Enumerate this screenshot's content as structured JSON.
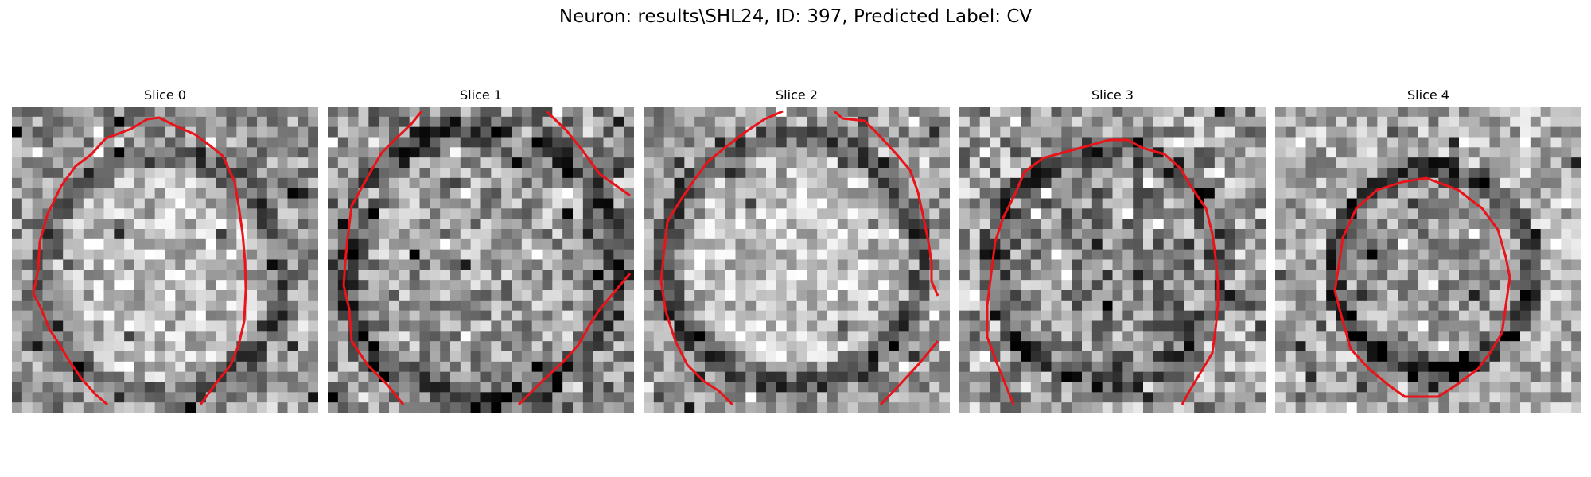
{
  "figure": {
    "title": "Neuron: results\\SHL24, ID: 397, Predicted Label: CV"
  },
  "colors": {
    "contour": "#e8141a",
    "background": "#ffffff"
  },
  "panels": [
    {
      "title": "Slice 0"
    },
    {
      "title": "Slice 1"
    },
    {
      "title": "Slice 2"
    },
    {
      "title": "Slice 3"
    },
    {
      "title": "Slice 4"
    }
  ]
}
